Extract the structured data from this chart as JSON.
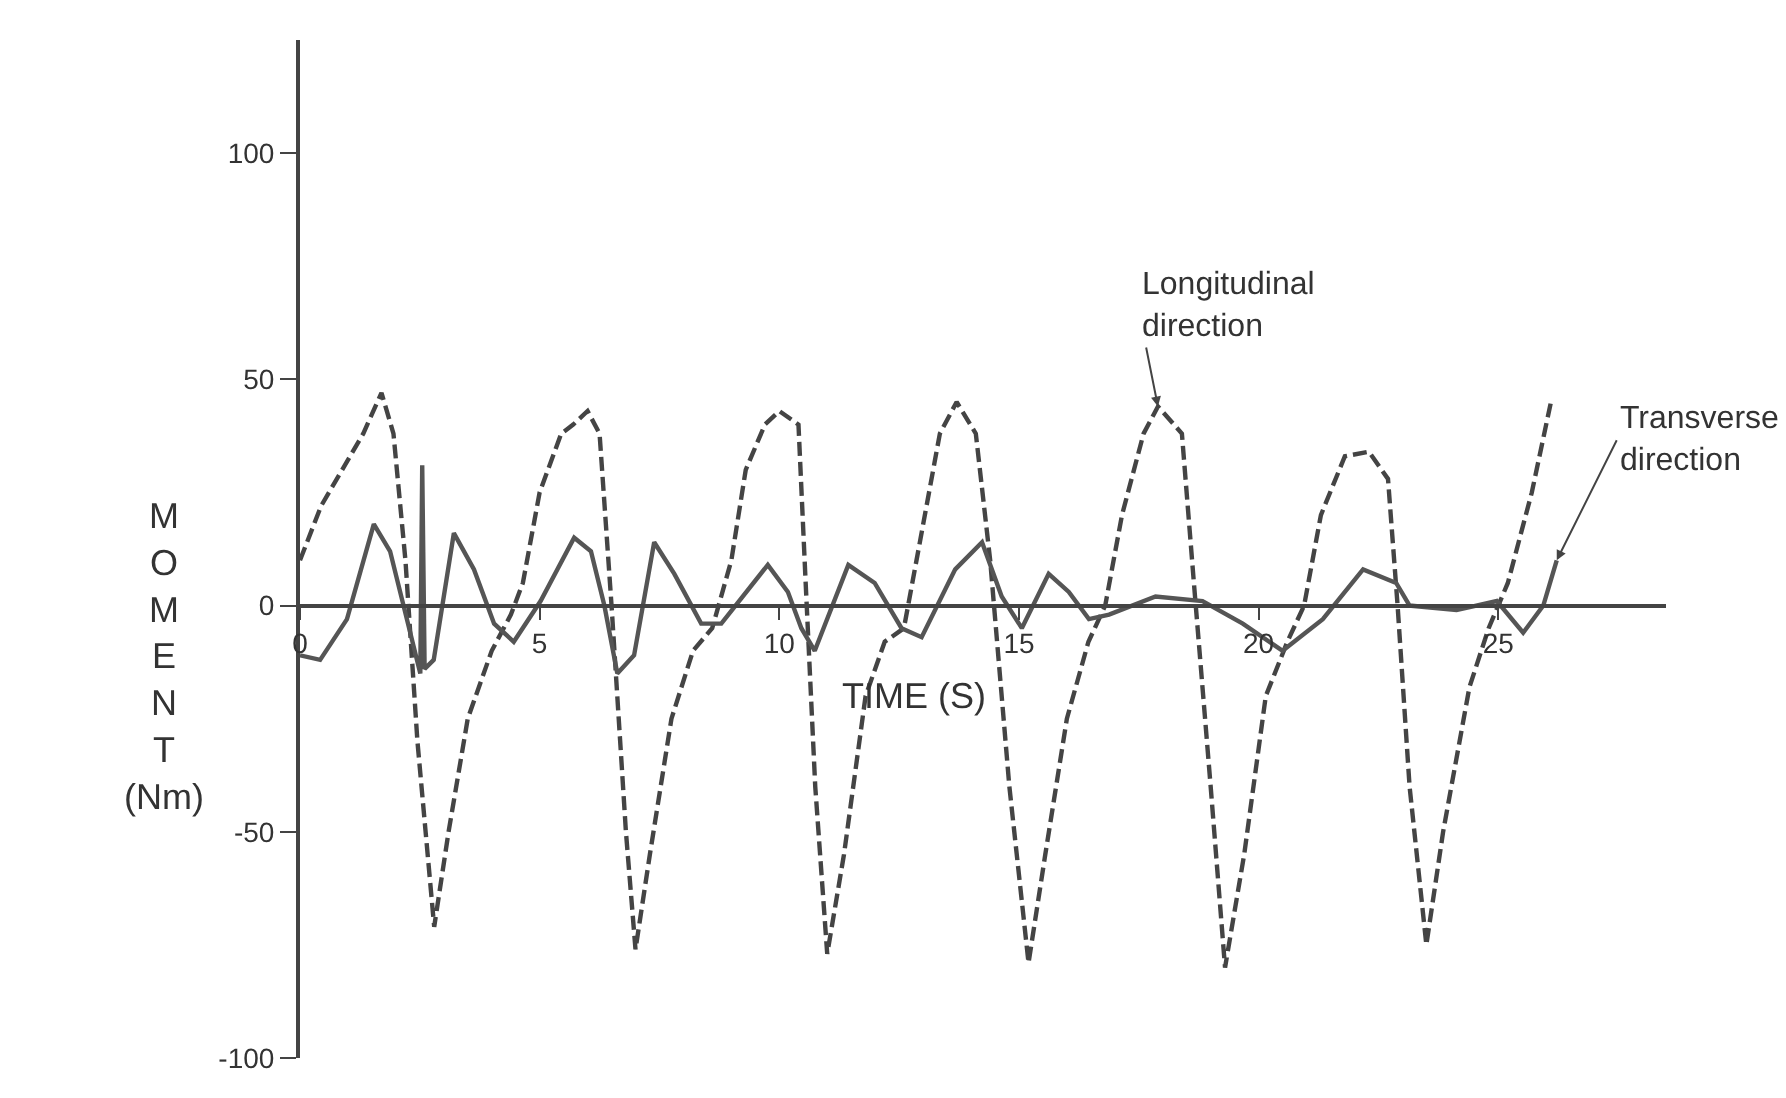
{
  "chart_data": {
    "type": "line",
    "xlabel": "TIME (S)",
    "ylabel": "MOMENT (Nm)",
    "xlim": [
      0,
      28.5
    ],
    "ylim": [
      -100,
      125
    ],
    "xticks": [
      0,
      5,
      10,
      15,
      20,
      25
    ],
    "yticks": [
      -100,
      -50,
      0,
      50,
      100
    ],
    "series": [
      {
        "color": "#444444",
        "line_style": "dashed",
        "x": [
          0,
          0.44,
          0.88,
          1.32,
          1.7,
          1.95,
          2.2,
          2.45,
          2.8,
          3.1,
          3.5,
          4.0,
          4.4,
          4.65,
          5.0,
          5.45,
          5.7,
          6.0,
          6.25,
          6.5,
          6.8,
          7.0,
          7.3,
          7.75,
          8.2,
          8.6,
          9.0,
          9.3,
          9.7,
          10.0,
          10.4,
          10.55,
          10.75,
          11.0,
          11.35,
          11.8,
          12.2,
          12.6,
          12.95,
          13.35,
          13.7,
          14.1,
          14.4,
          14.8,
          15.2,
          15.55,
          16.0,
          16.45,
          16.8,
          17.15,
          17.6,
          17.9,
          18.4,
          18.65,
          19.0,
          19.3,
          19.7,
          20.15,
          20.6,
          20.95,
          21.3,
          21.8,
          22.3,
          22.7,
          22.9,
          23.15,
          23.5,
          23.85,
          24.4,
          24.8,
          25.2,
          25.7,
          26.1
        ],
        "values": [
          10,
          22,
          30,
          38,
          47,
          38,
          10,
          -30,
          -71,
          -50,
          -25,
          -10,
          -2,
          5,
          25,
          38,
          40,
          43,
          38,
          0,
          -50,
          -76,
          -55,
          -25,
          -10,
          -5,
          10,
          30,
          40,
          43,
          40,
          5,
          -40,
          -77,
          -55,
          -20,
          -8,
          -5,
          15,
          38,
          45,
          38,
          10,
          -40,
          -79,
          -55,
          -25,
          -8,
          0,
          20,
          38,
          44,
          38,
          5,
          -40,
          -80,
          -55,
          -20,
          -8,
          0,
          20,
          33,
          34,
          28,
          0,
          -40,
          -75,
          -50,
          -18,
          -5,
          5,
          25,
          45
        ]
      },
      {
        "color": "#555555",
        "line_style": "solid",
        "x": [
          0,
          0.42,
          0.98,
          1.54,
          1.88,
          2.16,
          2.51,
          2.55,
          2.6,
          2.79,
          3.21,
          3.63,
          4.05,
          4.46,
          5.02,
          5.72,
          6.07,
          6.35,
          6.62,
          6.97,
          7.39,
          7.81,
          8.37,
          8.79,
          9.76,
          10.18,
          10.46,
          10.74,
          11.44,
          11.99,
          12.55,
          12.97,
          13.67,
          14.23,
          14.64,
          15.06,
          15.62,
          16.04,
          16.46,
          16.88,
          17.85,
          18.83,
          19.67,
          20.5,
          21.34,
          22.18,
          22.87,
          23.15,
          24.13,
          24.97,
          25.52,
          25.94,
          26.22
        ],
        "values": [
          -11,
          -12,
          -3,
          18,
          12,
          0,
          -15,
          31,
          -14,
          -12,
          16,
          8,
          -4,
          -8,
          1,
          15,
          12,
          0,
          -15,
          -11,
          14,
          7,
          -4,
          -4,
          9,
          3,
          -5,
          -10,
          9,
          5,
          -5,
          -7,
          8,
          14,
          2,
          -5,
          7,
          3,
          -3,
          -2,
          2,
          1,
          -4,
          -10,
          -3,
          8,
          5,
          0,
          -1,
          1,
          -6,
          0,
          10
        ]
      }
    ],
    "annotations": [
      {
        "text": "Longitudinal direction",
        "x": 17.9,
        "y": 44
      },
      {
        "text": "Transverse direction",
        "x": 26.22,
        "y": 10
      }
    ]
  }
}
